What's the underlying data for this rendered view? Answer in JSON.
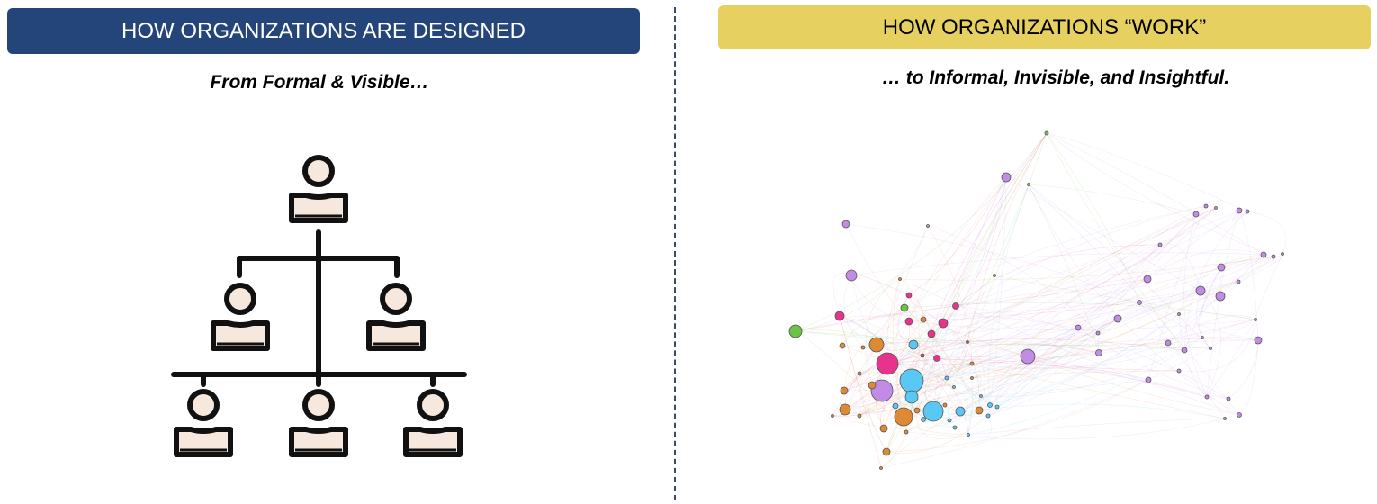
{
  "left_panel": {
    "header": "HOW ORGANIZATIONS ARE DESIGNED",
    "header_bg": "#24457a",
    "header_text_color": "#ffffff",
    "subtitle": "From Formal & Visible…",
    "icon": "org-chart-icon"
  },
  "right_panel": {
    "header": "HOW ORGANIZATIONS “WORK”",
    "header_bg": "#e6d160",
    "header_text_color": "#000000",
    "subtitle": "… to Informal, Invisible, and Insightful.",
    "icon": "network-graph-icon"
  },
  "colors": {
    "divider": "#3a4a6b",
    "person_fill": "#f6e8dc",
    "person_stroke": "#111111",
    "cluster_purple": "#c18be6",
    "cluster_pink": "#e8338c",
    "cluster_blue": "#5ac8f5",
    "cluster_orange": "#de8a35",
    "cluster_green": "#6cc243"
  }
}
